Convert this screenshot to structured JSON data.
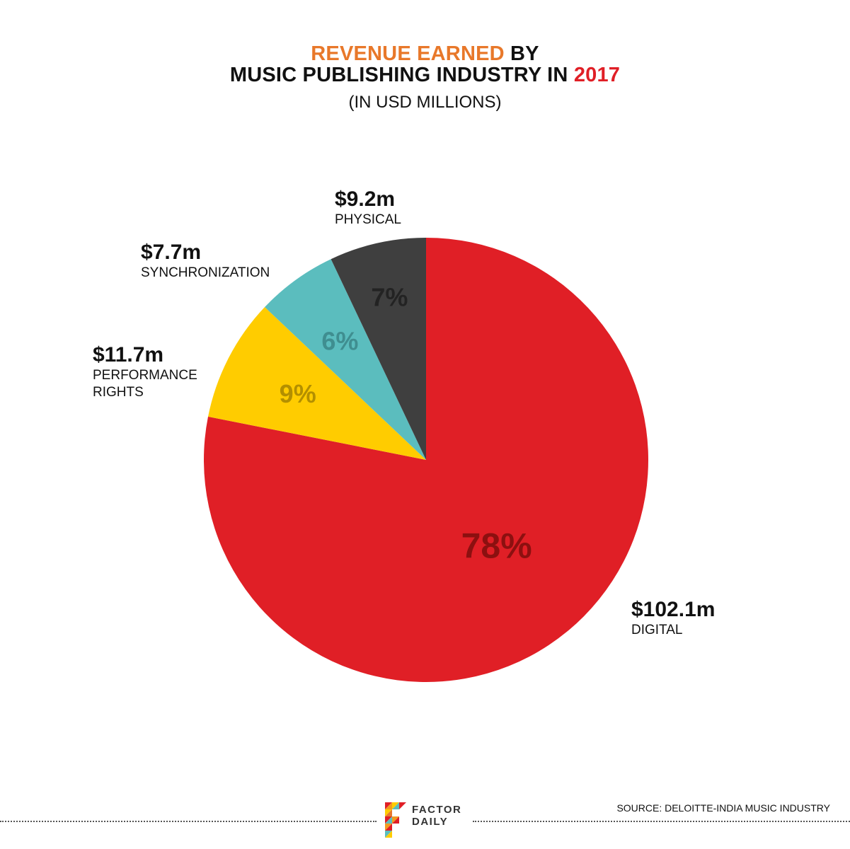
{
  "title": {
    "line1": [
      {
        "text": "REVENUE EARNED",
        "color": "#E8782A"
      },
      {
        "text": " BY",
        "color": "#111111"
      }
    ],
    "line2": [
      {
        "text": "MUSIC PUBLISHING INDUSTRY IN ",
        "color": "#111111"
      },
      {
        "text": "2017",
        "color": "#E01F26"
      }
    ]
  },
  "subtitle": "(IN USD MILLIONS)",
  "chart_data": {
    "type": "pie",
    "start_angle_deg": 0,
    "direction": "clockwise",
    "slices": [
      {
        "name": "DIGITAL",
        "value": 102.1,
        "value_label": "$102.1m",
        "percent": 78,
        "percent_label": "78%",
        "color": "#E01F26",
        "percent_color": "#8C1010"
      },
      {
        "name": "PERFORMANCE RIGHTS",
        "value": 11.7,
        "value_label": "$11.7m",
        "percent": 9,
        "percent_label": "9%",
        "color": "#FFCC00",
        "percent_color": "#B38F00"
      },
      {
        "name": "SYNCHRONIZATION",
        "value": 7.7,
        "value_label": "$7.7m",
        "percent": 6,
        "percent_label": "6%",
        "color": "#5BBDBE",
        "percent_color": "#3F8E90"
      },
      {
        "name": "PHYSICAL",
        "value": 9.2,
        "value_label": "$9.2m",
        "percent": 7,
        "percent_label": "7%",
        "color": "#3F3F3F",
        "percent_color": "#232323"
      }
    ]
  },
  "callouts": {
    "physical": {
      "value": "$9.2m",
      "label": "PHYSICAL"
    },
    "synchronization": {
      "value": "$7.7m",
      "label": "SYNCHRONIZATION"
    },
    "performance": {
      "value": "$11.7m",
      "label_line1": "PERFORMANCE",
      "label_line2": "RIGHTS"
    },
    "digital": {
      "value": "$102.1m",
      "label": "DIGITAL"
    }
  },
  "logo": {
    "line1": "FACTOR",
    "line2": "DAILY"
  },
  "source": "SOURCE: DELOITTE-INDIA MUSIC INDUSTRY"
}
